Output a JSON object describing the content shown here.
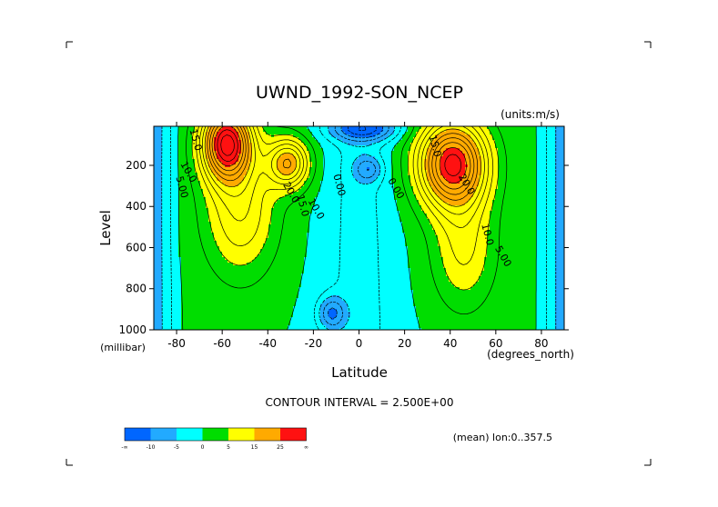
{
  "chart_data": {
    "type": "contour",
    "title": "UWND_1992-SON_NCEP",
    "units_label": "(units:m/s)",
    "xlabel": "Latitude",
    "ylabel": "Level",
    "x_unit_label": "(degrees_north)",
    "y_unit_label": "(millibar)",
    "xlim": [
      -90,
      90
    ],
    "ylim": [
      1000,
      10
    ],
    "x_ticks": [
      -80,
      -60,
      -40,
      -20,
      0,
      20,
      40,
      60,
      80
    ],
    "y_ticks": [
      200,
      400,
      600,
      800,
      1000
    ],
    "contour_interval_text": "CONTOUR INTERVAL = 2.500E+00",
    "annotation": "(mean) lon:0..357.5",
    "contour_labels": [
      {
        "text": "15.0",
        "lat": -73,
        "lev": 80
      },
      {
        "text": "10.0",
        "lat": -76,
        "lev": 240
      },
      {
        "text": "5.00",
        "lat": -79,
        "lev": 310
      },
      {
        "text": "20.0",
        "lat": -31,
        "lev": 340
      },
      {
        "text": "15.0",
        "lat": -26,
        "lev": 400
      },
      {
        "text": "10.0",
        "lat": -20,
        "lev": 420
      },
      {
        "text": "0.00",
        "lat": -10,
        "lev": 300
      },
      {
        "text": "0.00",
        "lat": 15,
        "lev": 320
      },
      {
        "text": "15.0",
        "lat": 32,
        "lev": 110
      },
      {
        "text": "20.0",
        "lat": 46,
        "lev": 300
      },
      {
        "text": "10.0",
        "lat": 55,
        "lev": 540
      },
      {
        "text": "5.00",
        "lat": 62,
        "lev": 650
      }
    ],
    "colorbar": {
      "colors": [
        "#0066ff",
        "#22aaff",
        "#00ffff",
        "#00dd00",
        "#ffff00",
        "#ffaa00",
        "#ff1111"
      ],
      "tick_labels": [
        "-∞",
        "-10",
        "-5",
        "0",
        "5",
        "15",
        "25",
        "∞"
      ]
    },
    "level_colors": [
      {
        "min": -100,
        "max": -10,
        "color": "#0066ff"
      },
      {
        "min": -10,
        "max": -5,
        "color": "#22aaff"
      },
      {
        "min": -5,
        "max": 0,
        "color": "#00ffff"
      },
      {
        "min": 0,
        "max": 5,
        "color": "#00dd00"
      },
      {
        "min": 5,
        "max": 15,
        "color": "#ffff00"
      },
      {
        "min": 15,
        "max": 25,
        "color": "#ffaa00"
      },
      {
        "min": 25,
        "max": 100,
        "color": "#ff1111"
      }
    ],
    "jets": [
      {
        "lat": -58,
        "lev": 90,
        "amp": 29,
        "sx": 11,
        "sy": 180
      },
      {
        "lat": -31,
        "lev": 190,
        "amp": 17,
        "sx": 9,
        "sy": 120
      },
      {
        "lat": -52,
        "lev": 420,
        "amp": 10,
        "sx": 16,
        "sy": 320
      },
      {
        "lat": 41,
        "lev": 190,
        "amp": 28,
        "sx": 15,
        "sy": 210
      },
      {
        "lat": 46,
        "lev": 600,
        "amp": 8,
        "sx": 14,
        "sy": 300
      }
    ],
    "easterly_cores": [
      {
        "lat": 4,
        "lev": 220,
        "amp": -7,
        "sx": 6,
        "sy": 60
      },
      {
        "lat": -12,
        "lev": 920,
        "amp": -9,
        "sx": 6,
        "sy": 80
      },
      {
        "lat": 2,
        "lev": 20,
        "amp": -12,
        "sx": 15,
        "sy": 60
      }
    ]
  }
}
